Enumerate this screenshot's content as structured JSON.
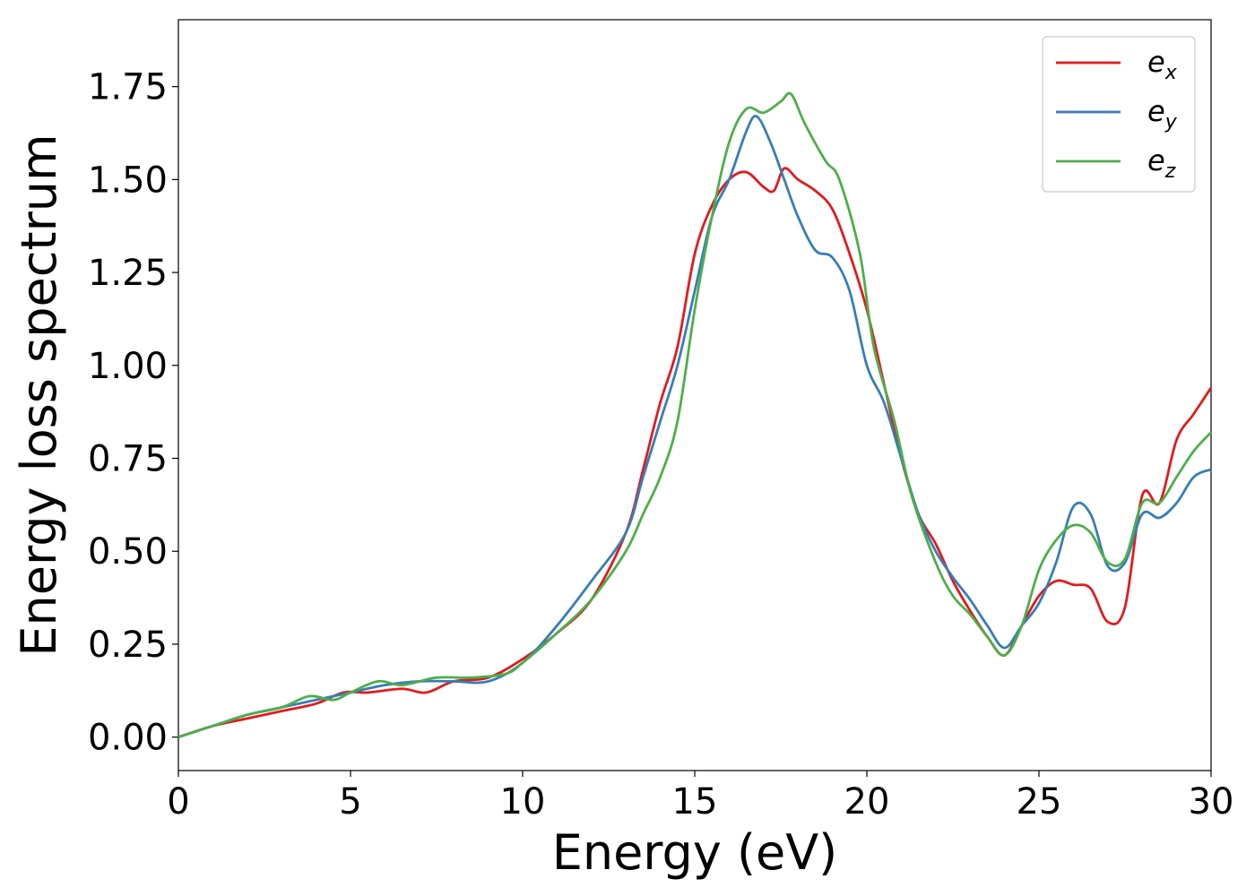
{
  "chart_data": {
    "type": "line",
    "xlabel": "Energy (eV)",
    "ylabel": "Energy loss spectrum",
    "xlim": [
      0,
      30
    ],
    "ylim": [
      -0.09,
      1.93
    ],
    "xticks": [
      0,
      5,
      10,
      15,
      20,
      25,
      30
    ],
    "xtick_labels": [
      "0",
      "5",
      "10",
      "15",
      "20",
      "25",
      "30"
    ],
    "yticks": [
      0,
      0.25,
      0.5,
      0.75,
      1.0,
      1.25,
      1.5,
      1.75
    ],
    "ytick_labels": [
      "0.00",
      "0.25",
      "0.50",
      "0.75",
      "1.00",
      "1.25",
      "1.50",
      "1.75"
    ],
    "grid": false,
    "legend_position": "top-right",
    "series": [
      {
        "name": "e_x",
        "legend_base": "e",
        "legend_sub": "x",
        "color": "#e41a1c",
        "points": [
          [
            0,
            0.0
          ],
          [
            1,
            0.03
          ],
          [
            2,
            0.05
          ],
          [
            3,
            0.07
          ],
          [
            4,
            0.09
          ],
          [
            4.8,
            0.12
          ],
          [
            5.5,
            0.12
          ],
          [
            6.5,
            0.13
          ],
          [
            7.2,
            0.12
          ],
          [
            8,
            0.15
          ],
          [
            9,
            0.16
          ],
          [
            10,
            0.21
          ],
          [
            11,
            0.28
          ],
          [
            12,
            0.37
          ],
          [
            13,
            0.55
          ],
          [
            13.5,
            0.72
          ],
          [
            14,
            0.9
          ],
          [
            14.5,
            1.05
          ],
          [
            15,
            1.3
          ],
          [
            15.5,
            1.43
          ],
          [
            16,
            1.5
          ],
          [
            16.5,
            1.52
          ],
          [
            17,
            1.48
          ],
          [
            17.3,
            1.47
          ],
          [
            17.6,
            1.53
          ],
          [
            18,
            1.5
          ],
          [
            18.5,
            1.47
          ],
          [
            19,
            1.42
          ],
          [
            19.5,
            1.3
          ],
          [
            20,
            1.15
          ],
          [
            20.5,
            0.95
          ],
          [
            21,
            0.75
          ],
          [
            21.5,
            0.6
          ],
          [
            22,
            0.52
          ],
          [
            22.5,
            0.42
          ],
          [
            23,
            0.34
          ],
          [
            23.5,
            0.27
          ],
          [
            24,
            0.22
          ],
          [
            24.5,
            0.3
          ],
          [
            25,
            0.38
          ],
          [
            25.5,
            0.42
          ],
          [
            26,
            0.41
          ],
          [
            26.5,
            0.4
          ],
          [
            27,
            0.31
          ],
          [
            27.5,
            0.35
          ],
          [
            28,
            0.65
          ],
          [
            28.5,
            0.63
          ],
          [
            29,
            0.8
          ],
          [
            29.5,
            0.87
          ],
          [
            30,
            0.94
          ]
        ]
      },
      {
        "name": "e_y",
        "legend_base": "e",
        "legend_sub": "y",
        "color": "#377eb8",
        "points": [
          [
            0,
            0.0
          ],
          [
            1,
            0.03
          ],
          [
            2,
            0.06
          ],
          [
            3,
            0.08
          ],
          [
            4,
            0.1
          ],
          [
            5,
            0.12
          ],
          [
            6,
            0.14
          ],
          [
            7,
            0.15
          ],
          [
            8,
            0.15
          ],
          [
            9,
            0.15
          ],
          [
            10,
            0.2
          ],
          [
            11,
            0.3
          ],
          [
            12,
            0.42
          ],
          [
            13,
            0.55
          ],
          [
            13.5,
            0.7
          ],
          [
            14,
            0.85
          ],
          [
            14.5,
            1.0
          ],
          [
            15,
            1.2
          ],
          [
            15.5,
            1.4
          ],
          [
            16,
            1.5
          ],
          [
            16.5,
            1.63
          ],
          [
            16.8,
            1.67
          ],
          [
            17.2,
            1.6
          ],
          [
            17.6,
            1.5
          ],
          [
            18,
            1.4
          ],
          [
            18.5,
            1.31
          ],
          [
            19,
            1.29
          ],
          [
            19.5,
            1.2
          ],
          [
            20,
            1.0
          ],
          [
            20.5,
            0.9
          ],
          [
            21,
            0.75
          ],
          [
            21.5,
            0.6
          ],
          [
            22,
            0.5
          ],
          [
            22.5,
            0.43
          ],
          [
            23,
            0.37
          ],
          [
            23.5,
            0.3
          ],
          [
            24,
            0.24
          ],
          [
            24.5,
            0.3
          ],
          [
            25,
            0.36
          ],
          [
            25.5,
            0.47
          ],
          [
            26,
            0.62
          ],
          [
            26.5,
            0.6
          ],
          [
            27,
            0.46
          ],
          [
            27.5,
            0.47
          ],
          [
            28,
            0.6
          ],
          [
            28.5,
            0.59
          ],
          [
            29,
            0.63
          ],
          [
            29.5,
            0.7
          ],
          [
            30,
            0.72
          ]
        ]
      },
      {
        "name": "e_z",
        "legend_base": "e",
        "legend_sub": "z",
        "color": "#4daf4a",
        "points": [
          [
            0,
            0.0
          ],
          [
            1,
            0.03
          ],
          [
            2,
            0.06
          ],
          [
            3,
            0.08
          ],
          [
            3.8,
            0.11
          ],
          [
            4.5,
            0.1
          ],
          [
            5,
            0.12
          ],
          [
            5.8,
            0.15
          ],
          [
            6.5,
            0.14
          ],
          [
            7.5,
            0.16
          ],
          [
            8.5,
            0.16
          ],
          [
            9.5,
            0.17
          ],
          [
            10,
            0.2
          ],
          [
            11,
            0.28
          ],
          [
            12,
            0.37
          ],
          [
            13,
            0.5
          ],
          [
            13.5,
            0.6
          ],
          [
            14,
            0.7
          ],
          [
            14.5,
            0.85
          ],
          [
            15,
            1.15
          ],
          [
            15.5,
            1.4
          ],
          [
            16,
            1.6
          ],
          [
            16.5,
            1.69
          ],
          [
            17,
            1.68
          ],
          [
            17.5,
            1.71
          ],
          [
            17.8,
            1.73
          ],
          [
            18.2,
            1.65
          ],
          [
            18.8,
            1.55
          ],
          [
            19.2,
            1.5
          ],
          [
            19.8,
            1.3
          ],
          [
            20.2,
            1.05
          ],
          [
            20.8,
            0.85
          ],
          [
            21.3,
            0.65
          ],
          [
            22,
            0.47
          ],
          [
            22.5,
            0.38
          ],
          [
            23,
            0.33
          ],
          [
            23.5,
            0.27
          ],
          [
            24,
            0.22
          ],
          [
            24.5,
            0.3
          ],
          [
            25,
            0.45
          ],
          [
            25.5,
            0.53
          ],
          [
            26,
            0.57
          ],
          [
            26.5,
            0.55
          ],
          [
            27,
            0.47
          ],
          [
            27.5,
            0.48
          ],
          [
            28,
            0.63
          ],
          [
            28.5,
            0.63
          ],
          [
            29,
            0.7
          ],
          [
            29.5,
            0.77
          ],
          [
            30,
            0.82
          ]
        ]
      }
    ]
  }
}
